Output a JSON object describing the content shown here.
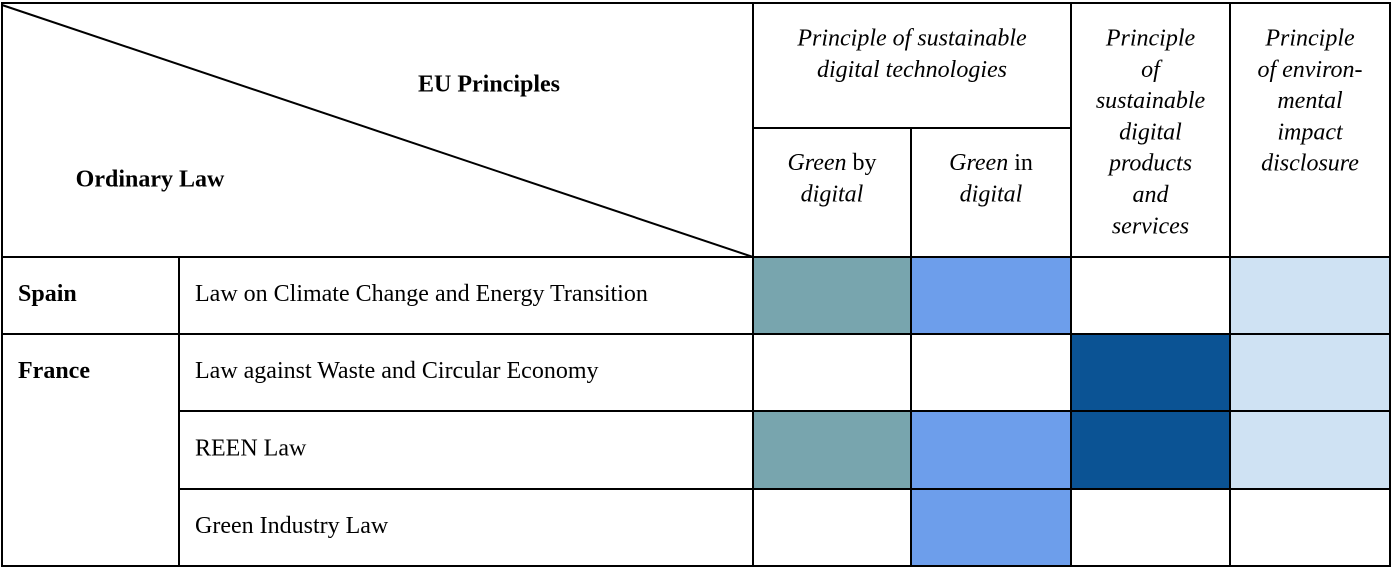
{
  "header": {
    "corner_top": "EU Principles",
    "corner_bottom": "Ordinary Law",
    "group": {
      "lines": [
        "Principle of sustainable",
        "digital technologies"
      ],
      "sub": [
        {
          "lines": [
            [
              "Green",
              " by"
            ],
            [
              "digital"
            ]
          ]
        },
        {
          "lines": [
            [
              "Green",
              " in"
            ],
            [
              "digital"
            ]
          ]
        }
      ]
    },
    "columns": [
      {
        "lines": [
          "Principle",
          "of",
          "sustainable",
          "digital",
          "products",
          "and",
          "services"
        ]
      },
      {
        "lines": [
          "Principle",
          "of environ-",
          "mental",
          "impact",
          "disclosure"
        ]
      }
    ]
  },
  "table": {
    "rows": [
      {
        "country": "Spain",
        "law": "Law on Climate Change and Energy Transition",
        "cells": [
          "#78a5ae",
          "#6d9eeb",
          null,
          "#cfe2f3"
        ]
      },
      {
        "country": "France",
        "law": "Law against Waste and Circular Economy",
        "cells": [
          null,
          null,
          "#0b5394",
          "#cfe2f3"
        ]
      },
      {
        "law": "REEN Law",
        "cells": [
          "#78a5ae",
          "#6d9eeb",
          "#0b5394",
          "#cfe2f3"
        ]
      },
      {
        "law": "Green Industry Law",
        "cells": [
          null,
          "#6d9eeb",
          null,
          null
        ]
      }
    ]
  }
}
